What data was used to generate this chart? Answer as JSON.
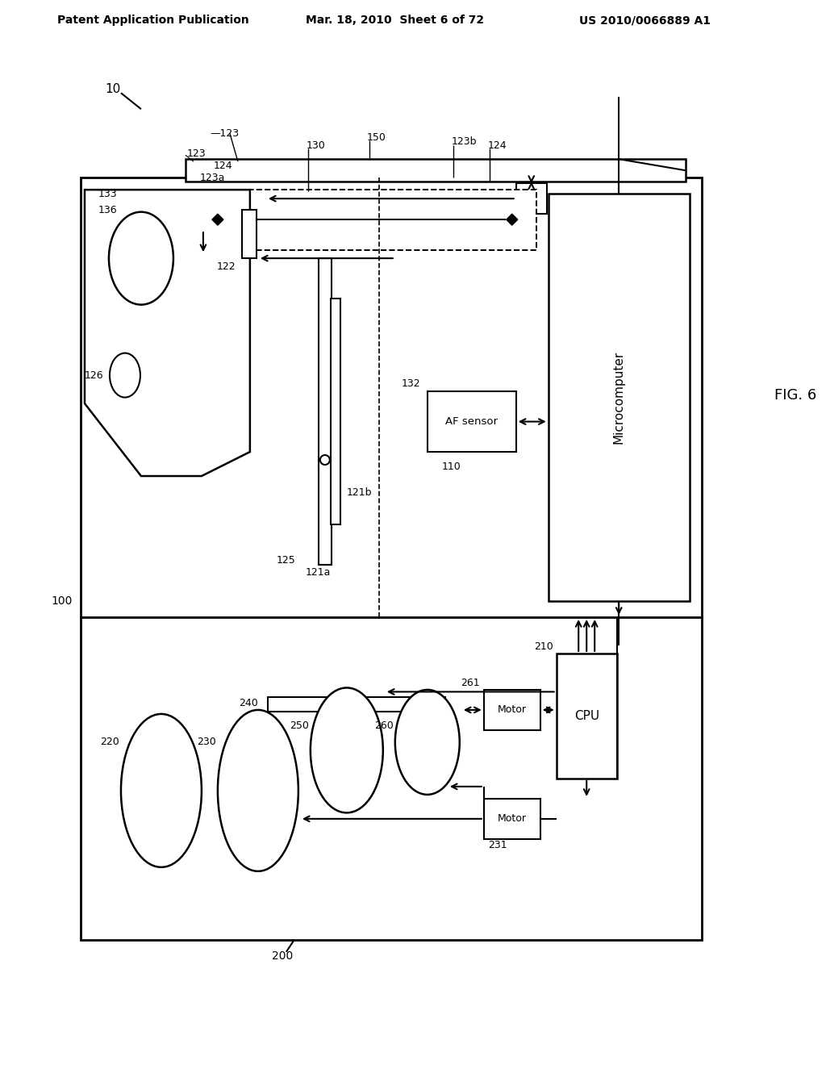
{
  "title_left": "Patent Application Publication",
  "title_mid": "Mar. 18, 2010  Sheet 6 of 72",
  "title_right": "US 2010/0066889 A1",
  "bg_color": "#ffffff",
  "line_color": "#000000"
}
